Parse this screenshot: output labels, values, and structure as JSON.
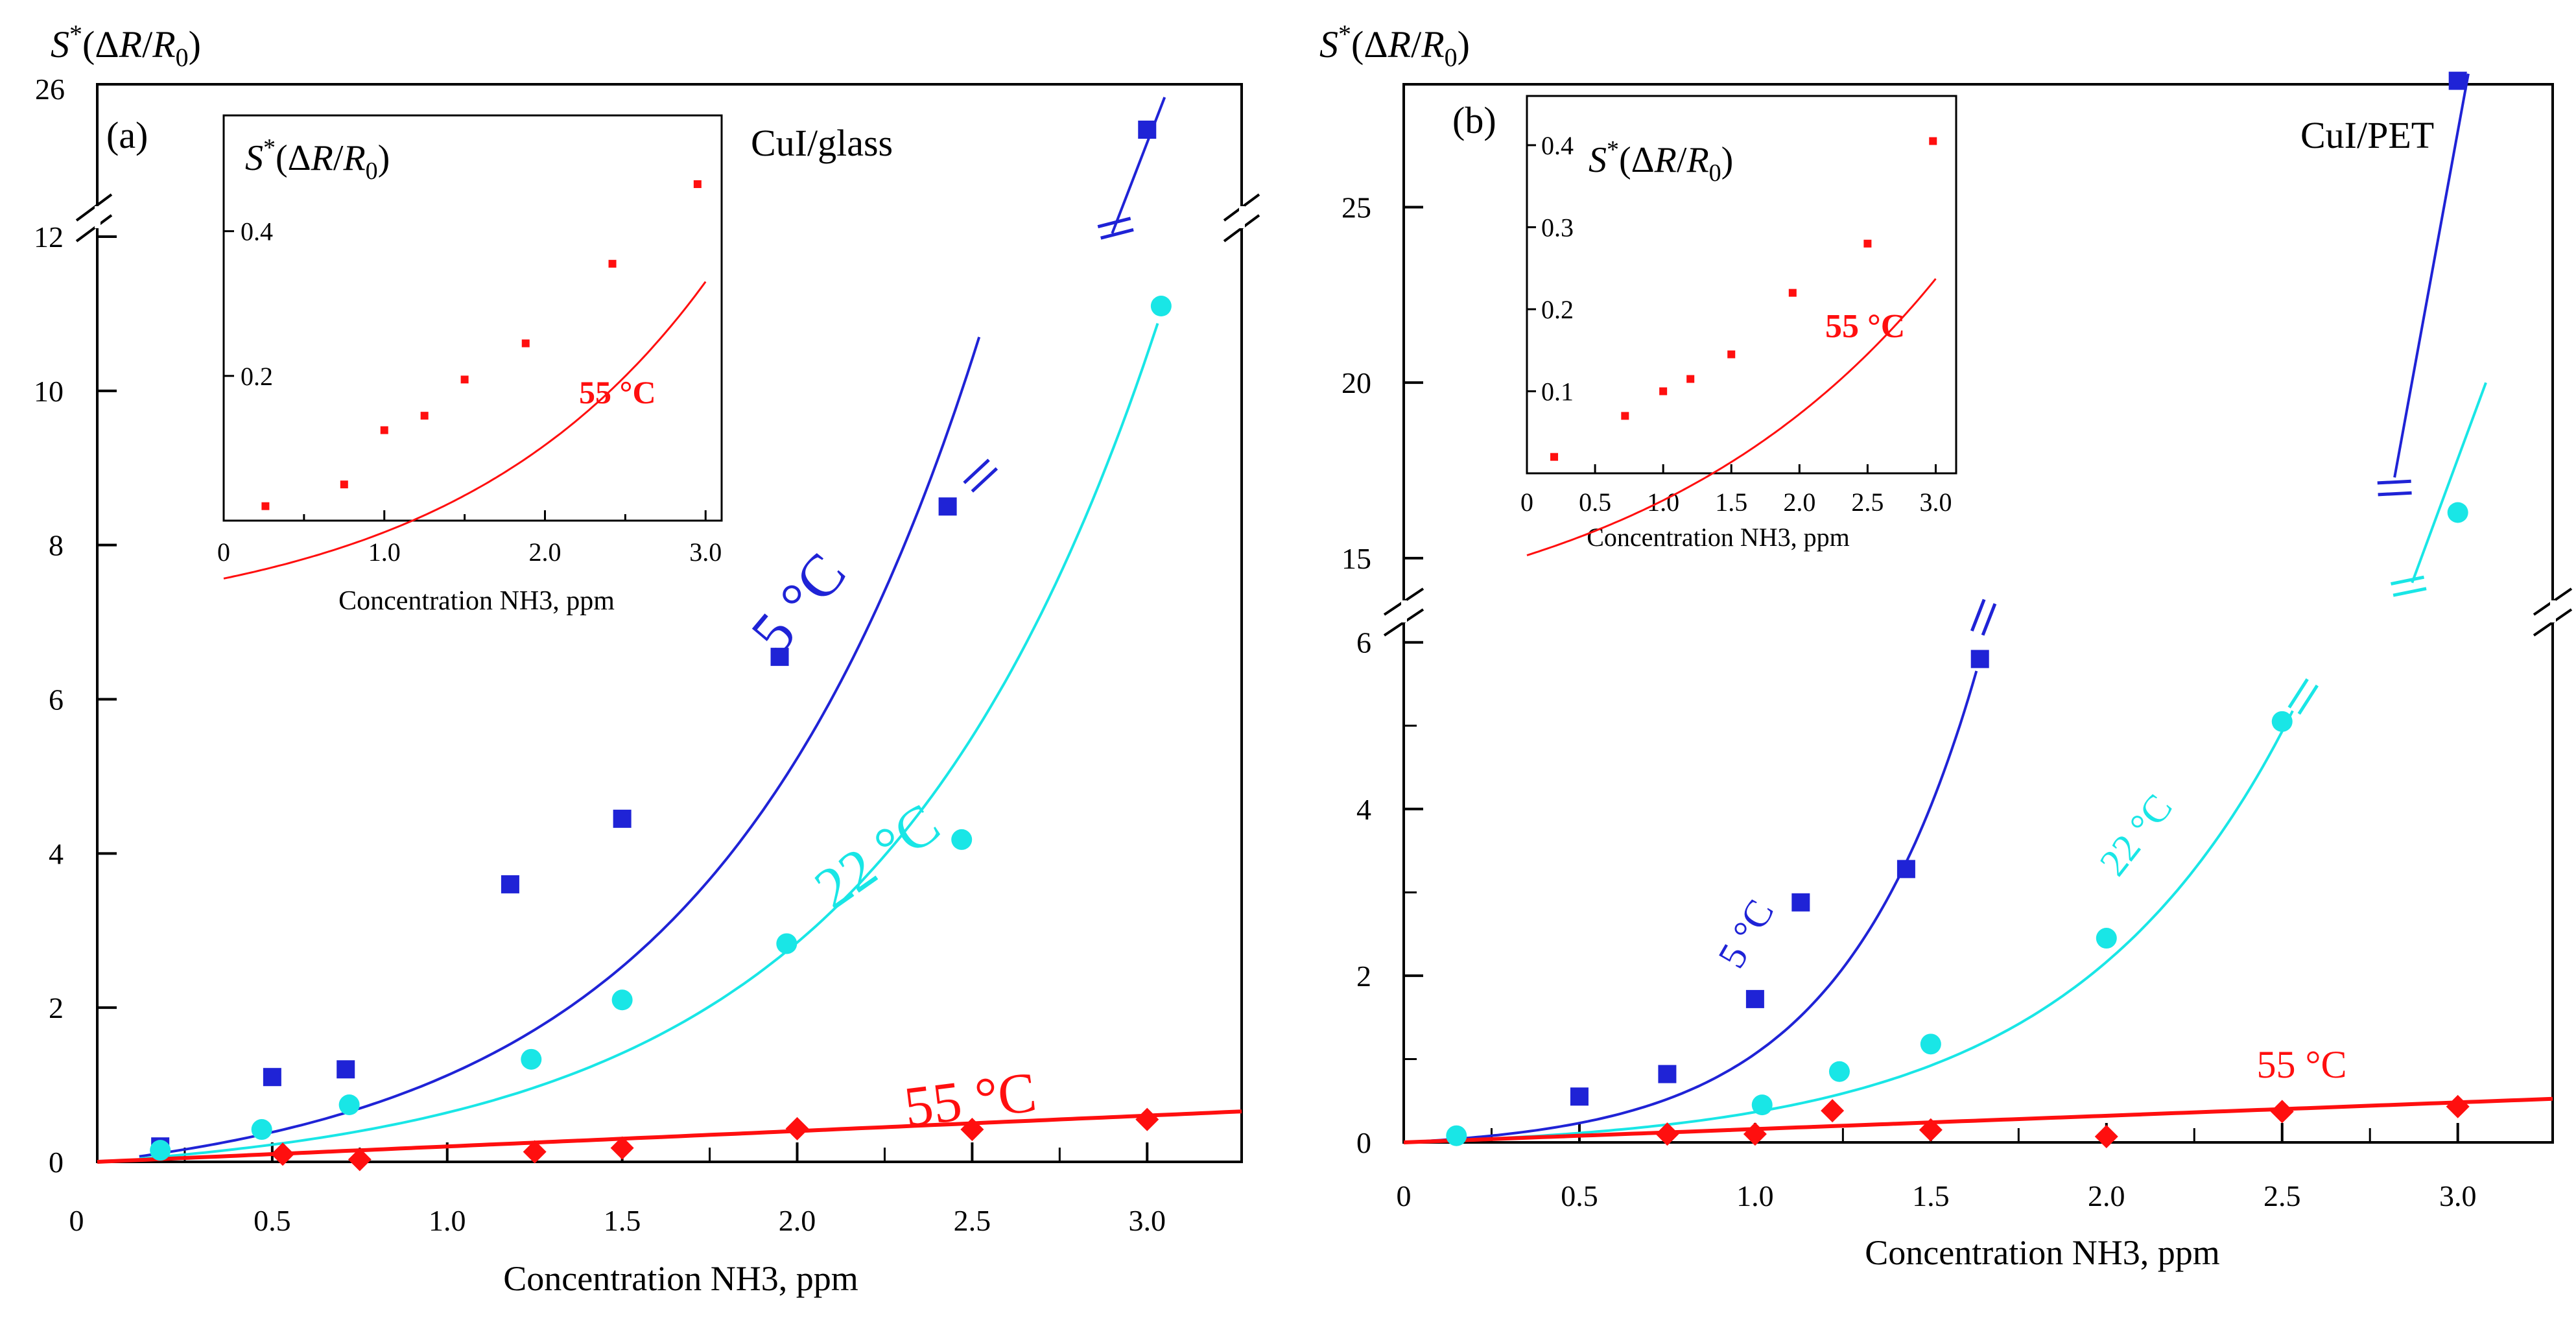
{
  "colors": {
    "s5": "#1f23d6",
    "s22": "#19e6e6",
    "s55": "#ff0f0f",
    "axis": "#000000"
  },
  "chart_data": [
    {
      "panel": "(a)",
      "type": "scatter",
      "substrate_label": "CuI/glass",
      "ylabel": "S*(ΔR/R₀)",
      "xlabel": "Concentration NH3, ppm",
      "xlim": [
        0,
        3.27
      ],
      "ylim": [
        0,
        12
      ],
      "broken_axis": {
        "upper_tick_label": "26",
        "upper_value": 26
      },
      "x_ticks": [
        0.5,
        1.0,
        1.5,
        2.0,
        2.5,
        3.0
      ],
      "x_tick_labels": [
        "0.5",
        "1.0",
        "1.5",
        "2.0",
        "2.5",
        "3.0"
      ],
      "origin_label": "0",
      "y_ticks": [
        0,
        2,
        4,
        6,
        8,
        10,
        12
      ],
      "y_tick_labels": [
        "0",
        "2",
        "4",
        "6",
        "8",
        "10",
        "12"
      ],
      "series": [
        {
          "name": "5 °C",
          "marker": "square",
          "color": "#1f23d6",
          "x": [
            0.18,
            0.5,
            0.71,
            1.18,
            1.5,
            1.95,
            2.43
          ],
          "y": [
            0.2,
            1.1,
            1.2,
            3.6,
            4.45,
            6.55,
            8.5
          ],
          "broken_point": {
            "x": 3.0,
            "y": 25.2
          },
          "fit": {
            "a": 0.42,
            "k": 1.3,
            "x0": 0.12,
            "x1": 2.52
          }
        },
        {
          "name": "22 °C",
          "marker": "circle",
          "color": "#19e6e6",
          "x": [
            0.18,
            0.47,
            0.72,
            1.24,
            1.5,
            1.97,
            2.47,
            3.04
          ],
          "y": [
            0.15,
            0.42,
            0.74,
            1.33,
            2.1,
            2.83,
            4.18,
            11.1
          ],
          "fit": {
            "a": 0.26,
            "k": 1.24,
            "x0": 0.12,
            "x1": 3.03
          }
        },
        {
          "name": "55 °C",
          "marker": "diamond",
          "color": "#ff0f0f",
          "x": [
            0.53,
            0.75,
            1.25,
            1.5,
            2.0,
            2.5,
            3.0
          ],
          "y": [
            0.1,
            0.03,
            0.13,
            0.18,
            0.43,
            0.42,
            0.55
          ],
          "fit": {
            "m": 0.2,
            "x0": 0.0,
            "x1": 3.27
          }
        }
      ],
      "curve_labels": [
        "5 °C",
        "22 °C",
        "55 °C"
      ],
      "inset": {
        "title": "S*(ΔR/R₀)",
        "xlabel": "Concentration NH3, ppm",
        "annotation": "55 °C",
        "xlim": [
          0,
          3.1
        ],
        "ylim": [
          0,
          0.56
        ],
        "x_ticks": [
          0,
          1.0,
          2.0,
          3.0
        ],
        "x_tick_labels": [
          "0",
          "1.0",
          "2.0",
          "3.0"
        ],
        "y_ticks": [
          0.2,
          0.4
        ],
        "y_tick_labels": [
          "0.2",
          "0.4"
        ],
        "points": {
          "x": [
            0.26,
            0.75,
            1.0,
            1.25,
            1.5,
            1.88,
            2.42,
            2.95
          ],
          "y": [
            0.02,
            0.05,
            0.125,
            0.145,
            0.195,
            0.245,
            0.355,
            0.465
          ]
        },
        "fit": {
          "a": 0.073,
          "k": 0.63,
          "c": -0.08,
          "x0": 0.0,
          "x1": 3.0
        }
      }
    },
    {
      "panel": "(b)",
      "type": "scatter",
      "substrate_label": "CuI/PET",
      "ylabel": "S*(ΔR/R₀)",
      "xlabel": "Concentration NH3, ppm",
      "xlim": [
        0,
        3.27
      ],
      "ylim": [
        0,
        6.2
      ],
      "x_ticks": [
        0.5,
        1.0,
        1.5,
        2.0,
        2.5,
        3.0
      ],
      "x_tick_labels": [
        "0.5",
        "1.0",
        "1.5",
        "2.0",
        "2.5",
        "3.0"
      ],
      "origin_label": "0",
      "y_ticks": [
        0,
        2,
        4,
        6
      ],
      "y_tick_labels": [
        "0",
        "2",
        "4",
        "6"
      ],
      "upper_ylim": [
        14,
        28.5
      ],
      "upper_y_ticks": [
        15,
        20,
        25
      ],
      "upper_y_tick_labels": [
        "15",
        "20",
        "25"
      ],
      "series": [
        {
          "name": "5 °C",
          "marker": "square",
          "color": "#1f23d6",
          "x": [
            0.5,
            0.75,
            1.0,
            1.13,
            1.43,
            1.64
          ],
          "y": [
            0.55,
            0.82,
            1.72,
            2.88,
            3.28,
            5.8
          ],
          "broken_point": {
            "x": 3.0,
            "y": 28.6
          },
          "fit": {
            "a": 0.09,
            "k": 2.55,
            "x0": 0.0,
            "x1": 1.63
          }
        },
        {
          "name": "22 °C",
          "marker": "circle",
          "color": "#19e6e6",
          "x": [
            0.15,
            1.02,
            1.24,
            1.5,
            2.0,
            2.5
          ],
          "y": [
            0.08,
            0.45,
            0.85,
            1.18,
            2.45,
            5.05
          ],
          "broken_point": {
            "x": 3.0,
            "y": 16.3
          },
          "fit": {
            "a": 0.092,
            "k": 1.6,
            "x0": 0.12,
            "x1": 2.53
          }
        },
        {
          "name": "55 °C",
          "marker": "diamond",
          "color": "#ff0f0f",
          "x": [
            0.75,
            1.0,
            1.22,
            1.5,
            2.0,
            2.5,
            3.0
          ],
          "y": [
            0.1,
            0.1,
            0.38,
            0.15,
            0.07,
            0.37,
            0.43
          ],
          "fit": {
            "m": 0.16,
            "x0": 0.0,
            "x1": 3.27
          }
        }
      ],
      "curve_labels": [
        "5 °C",
        "22 °C",
        "55 °C"
      ],
      "inset": {
        "title": "S*(ΔR/R₀)",
        "xlabel": "Concentration NH3, ppm",
        "annotation": "55 °C",
        "xlim": [
          0,
          3.15
        ],
        "ylim": [
          0,
          0.46
        ],
        "x_ticks": [
          0,
          0.5,
          1.0,
          1.5,
          2.0,
          2.5,
          3.0
        ],
        "x_tick_labels": [
          "0",
          "0.5",
          "1.0",
          "1.5",
          "2.0",
          "2.5",
          "3.0"
        ],
        "y_ticks": [
          0.1,
          0.2,
          0.3,
          0.4
        ],
        "y_tick_labels": [
          "0.1",
          "0.2",
          "0.3",
          "0.4"
        ],
        "points": {
          "x": [
            0.2,
            0.72,
            1.0,
            1.2,
            1.5,
            1.95,
            2.5,
            2.98
          ],
          "y": [
            0.02,
            0.07,
            0.1,
            0.115,
            0.145,
            0.22,
            0.28,
            0.405
          ]
        },
        "fit": {
          "a": 0.118,
          "k": 0.45,
          "c": -0.1,
          "x0": 0.0,
          "x1": 3.0
        }
      }
    }
  ]
}
